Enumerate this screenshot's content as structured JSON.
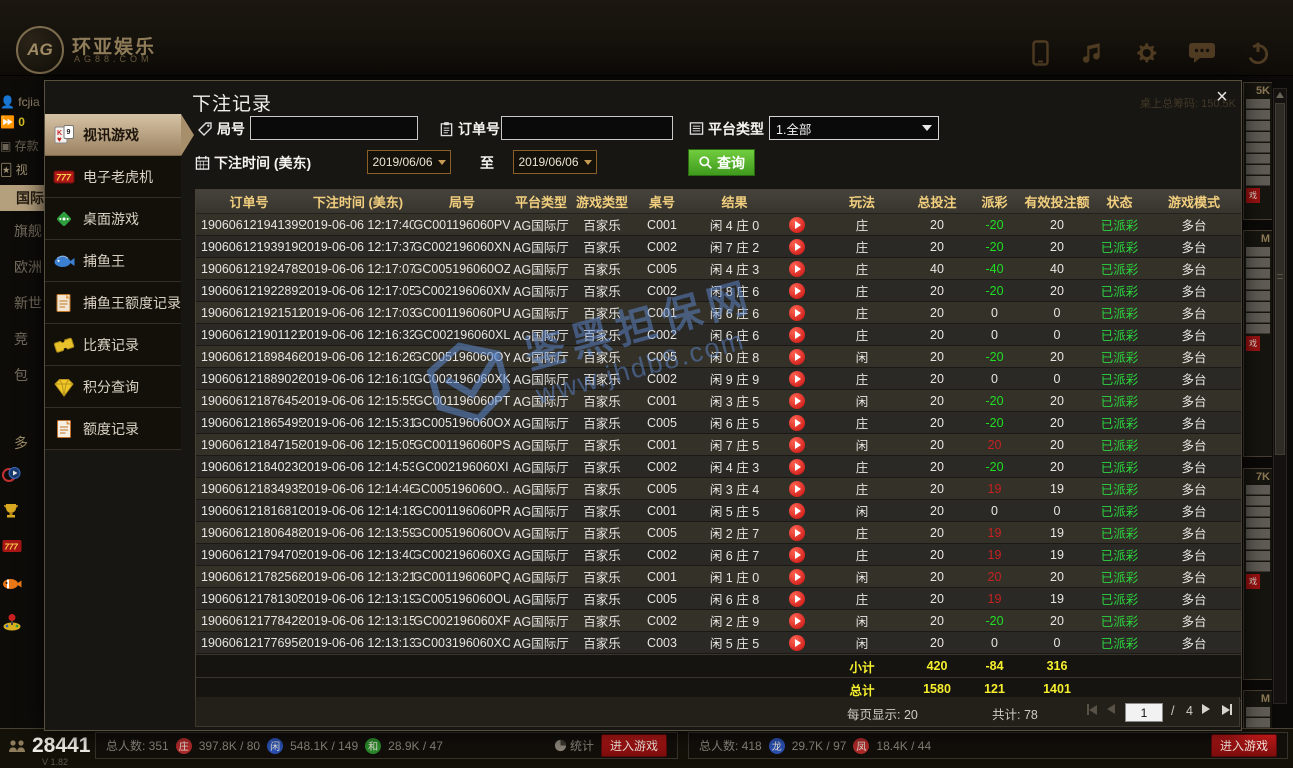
{
  "top_bar": {
    "logo_text": "AG",
    "brand_name": "环亚娱乐",
    "brand_domain": "AG88.COM",
    "icons": [
      "phone-icon",
      "music-icon",
      "settings-icon",
      "chat-icon",
      "power-icon"
    ]
  },
  "background": {
    "user": {
      "name": "fcjia",
      "balance": "0",
      "deposit_label": "存款",
      "video_label": "视"
    },
    "left_nav": [
      "国际",
      "旗舰",
      "欧洲",
      "新世",
      "竞",
      "包",
      "多"
    ],
    "left_nav_icons": [
      "live-icon",
      "trophy-icon",
      "slot-icon",
      "fish-icon",
      "arcade-icon"
    ],
    "header_bleed": "桌上总筹码: 150.5K",
    "right_cards": [
      "5K",
      "M",
      "7K",
      "M"
    ],
    "enter_fragment": "戏",
    "bottom_bar": {
      "online_count": "28441",
      "version": "V 1.82",
      "table1": {
        "total_label": "总人数: 351",
        "stats": [
          {
            "badge": "庄",
            "color": "#b02a2a",
            "value": "397.8K / 80"
          },
          {
            "badge": "闲",
            "color": "#2a50b0",
            "value": "548.1K / 149"
          },
          {
            "badge": "和",
            "color": "#2a8a2a",
            "value": "28.9K / 47"
          }
        ],
        "stat_button": "统计",
        "enter_button": "进入游戏"
      },
      "table2": {
        "total_label": "总人数: 418",
        "stats": [
          {
            "badge": "龙",
            "color": "#2a50b0",
            "value": "29.7K / 97"
          },
          {
            "badge": "凤",
            "color": "#b02a2a",
            "value": "18.4K / 44"
          }
        ],
        "enter_button": "进入游戏"
      }
    }
  },
  "dialog": {
    "title": "下注记录",
    "close_label": "×",
    "menu": [
      {
        "label": "视讯游戏",
        "icon": "cards-icon",
        "active": true
      },
      {
        "label": "电子老虎机",
        "icon": "slot-icon",
        "active": false
      },
      {
        "label": "桌面游戏",
        "icon": "dice-icon",
        "active": false
      },
      {
        "label": "捕鱼王",
        "icon": "fish-icon",
        "active": false
      },
      {
        "label": "捕鱼王额度记录",
        "icon": "fish-record-icon",
        "active": false
      },
      {
        "label": "比赛记录",
        "icon": "ticket-icon",
        "active": false
      },
      {
        "label": "积分查询",
        "icon": "points-icon",
        "active": false
      },
      {
        "label": "额度记录",
        "icon": "credit-record-icon",
        "active": false
      }
    ],
    "filters": {
      "round_label": "局号",
      "round_value": "",
      "order_label": "订单号",
      "order_value": "",
      "platform_label": "平台类型",
      "platform_value": "1.全部",
      "time_label": "下注时间 (美东)",
      "date_from": "2019/06/06",
      "to_label": "至",
      "date_to": "2019/06/06",
      "search_label": "查询"
    },
    "table": {
      "headers": [
        "订单号",
        "下注时间 (美东)",
        "局号",
        "平台类型",
        "游戏类型",
        "桌号",
        "结果",
        "",
        "玩法",
        "总投注",
        "派彩",
        "有效投注额",
        "状态",
        "游戏模式"
      ],
      "rows": [
        {
          "order_id": "190606121941399",
          "bet_time": "2019-06-06 12:17:40",
          "round_id": "GC001196060PV",
          "platform": "AG国际厅",
          "game_type": "百家乐",
          "table_no": "C001",
          "result": "闲 4 庄 0",
          "play": "庄",
          "bet": "20",
          "payout": "-20",
          "valid_bet": "20",
          "status": "已派彩",
          "mode": "多台"
        },
        {
          "order_id": "190606121939190",
          "bet_time": "2019-06-06 12:17:37",
          "round_id": "GC002196060XN",
          "platform": "AG国际厅",
          "game_type": "百家乐",
          "table_no": "C002",
          "result": "闲 7 庄 2",
          "play": "庄",
          "bet": "20",
          "payout": "-20",
          "valid_bet": "20",
          "status": "已派彩",
          "mode": "多台"
        },
        {
          "order_id": "190606121924789",
          "bet_time": "2019-06-06 12:17:07",
          "round_id": "GC005196060OZ",
          "platform": "AG国际厅",
          "game_type": "百家乐",
          "table_no": "C005",
          "result": "闲 4 庄 3",
          "play": "庄",
          "bet": "40",
          "payout": "-40",
          "valid_bet": "40",
          "status": "已派彩",
          "mode": "多台"
        },
        {
          "order_id": "190606121922892",
          "bet_time": "2019-06-06 12:17:05",
          "round_id": "GC002196060XM",
          "platform": "AG国际厅",
          "game_type": "百家乐",
          "table_no": "C002",
          "result": "闲 8 庄 6",
          "play": "庄",
          "bet": "20",
          "payout": "-20",
          "valid_bet": "20",
          "status": "已派彩",
          "mode": "多台"
        },
        {
          "order_id": "190606121921511",
          "bet_time": "2019-06-06 12:17:03",
          "round_id": "GC001196060PU",
          "platform": "AG国际厅",
          "game_type": "百家乐",
          "table_no": "C001",
          "result": "闲 6 庄 6",
          "play": "庄",
          "bet": "20",
          "payout": "0",
          "valid_bet": "0",
          "status": "已派彩",
          "mode": "多台"
        },
        {
          "order_id": "190606121901121",
          "bet_time": "2019-06-06 12:16:32",
          "round_id": "GC002196060XL",
          "platform": "AG国际厅",
          "game_type": "百家乐",
          "table_no": "C002",
          "result": "闲 6 庄 6",
          "play": "庄",
          "bet": "20",
          "payout": "0",
          "valid_bet": "0",
          "status": "已派彩",
          "mode": "多台"
        },
        {
          "order_id": "190606121898466",
          "bet_time": "2019-06-06 12:16:26",
          "round_id": "GC005196060OY",
          "platform": "AG国际厅",
          "game_type": "百家乐",
          "table_no": "C005",
          "result": "闲 0 庄 8",
          "play": "闲",
          "bet": "20",
          "payout": "-20",
          "valid_bet": "20",
          "status": "已派彩",
          "mode": "多台"
        },
        {
          "order_id": "190606121889026",
          "bet_time": "2019-06-06 12:16:10",
          "round_id": "GC002196060XK",
          "platform": "AG国际厅",
          "game_type": "百家乐",
          "table_no": "C002",
          "result": "闲 9 庄 9",
          "play": "庄",
          "bet": "20",
          "payout": "0",
          "valid_bet": "0",
          "status": "已派彩",
          "mode": "多台"
        },
        {
          "order_id": "190606121876454",
          "bet_time": "2019-06-06 12:15:55",
          "round_id": "GC001196060PT",
          "platform": "AG国际厅",
          "game_type": "百家乐",
          "table_no": "C001",
          "result": "闲 3 庄 5",
          "play": "闲",
          "bet": "20",
          "payout": "-20",
          "valid_bet": "20",
          "status": "已派彩",
          "mode": "多台"
        },
        {
          "order_id": "190606121865495",
          "bet_time": "2019-06-06 12:15:31",
          "round_id": "GC005196060OX",
          "platform": "AG国际厅",
          "game_type": "百家乐",
          "table_no": "C005",
          "result": "闲 6 庄 5",
          "play": "庄",
          "bet": "20",
          "payout": "-20",
          "valid_bet": "20",
          "status": "已派彩",
          "mode": "多台"
        },
        {
          "order_id": "190606121847158",
          "bet_time": "2019-06-06 12:15:05",
          "round_id": "GC001196060PS",
          "platform": "AG国际厅",
          "game_type": "百家乐",
          "table_no": "C001",
          "result": "闲 7 庄 5",
          "play": "闲",
          "bet": "20",
          "payout": "20",
          "valid_bet": "20",
          "status": "已派彩",
          "mode": "多台"
        },
        {
          "order_id": "190606121840230",
          "bet_time": "2019-06-06 12:14:53",
          "round_id": "GC002196060XI",
          "platform": "AG国际厅",
          "game_type": "百家乐",
          "table_no": "C002",
          "result": "闲 4 庄 3",
          "play": "庄",
          "bet": "20",
          "payout": "-20",
          "valid_bet": "20",
          "status": "已派彩",
          "mode": "多台"
        },
        {
          "order_id": "190606121834935",
          "bet_time": "2019-06-06 12:14:46",
          "round_id": "GC005196060O...",
          "platform": "AG国际厅",
          "game_type": "百家乐",
          "table_no": "C005",
          "result": "闲 3 庄 4",
          "play": "庄",
          "bet": "20",
          "payout": "19",
          "valid_bet": "19",
          "status": "已派彩",
          "mode": "多台"
        },
        {
          "order_id": "190606121816810",
          "bet_time": "2019-06-06 12:14:18",
          "round_id": "GC001196060PR",
          "platform": "AG国际厅",
          "game_type": "百家乐",
          "table_no": "C001",
          "result": "闲 5 庄 5",
          "play": "闲",
          "bet": "20",
          "payout": "0",
          "valid_bet": "0",
          "status": "已派彩",
          "mode": "多台"
        },
        {
          "order_id": "190606121806488",
          "bet_time": "2019-06-06 12:13:59",
          "round_id": "GC005196060OV",
          "platform": "AG国际厅",
          "game_type": "百家乐",
          "table_no": "C005",
          "result": "闲 2 庄 7",
          "play": "庄",
          "bet": "20",
          "payout": "19",
          "valid_bet": "19",
          "status": "已派彩",
          "mode": "多台"
        },
        {
          "order_id": "190606121794705",
          "bet_time": "2019-06-06 12:13:40",
          "round_id": "GC002196060XG",
          "platform": "AG国际厅",
          "game_type": "百家乐",
          "table_no": "C002",
          "result": "闲 6 庄 7",
          "play": "庄",
          "bet": "20",
          "payout": "19",
          "valid_bet": "19",
          "status": "已派彩",
          "mode": "多台"
        },
        {
          "order_id": "190606121782568",
          "bet_time": "2019-06-06 12:13:21",
          "round_id": "GC001196060PQ",
          "platform": "AG国际厅",
          "game_type": "百家乐",
          "table_no": "C001",
          "result": "闲 1 庄 0",
          "play": "闲",
          "bet": "20",
          "payout": "20",
          "valid_bet": "20",
          "status": "已派彩",
          "mode": "多台"
        },
        {
          "order_id": "190606121781305",
          "bet_time": "2019-06-06 12:13:19",
          "round_id": "GC005196060OU",
          "platform": "AG国际厅",
          "game_type": "百家乐",
          "table_no": "C005",
          "result": "闲 6 庄 8",
          "play": "庄",
          "bet": "20",
          "payout": "19",
          "valid_bet": "19",
          "status": "已派彩",
          "mode": "多台"
        },
        {
          "order_id": "190606121778428",
          "bet_time": "2019-06-06 12:13:15",
          "round_id": "GC002196060XF",
          "platform": "AG国际厅",
          "game_type": "百家乐",
          "table_no": "C002",
          "result": "闲 2 庄 9",
          "play": "闲",
          "bet": "20",
          "payout": "-20",
          "valid_bet": "20",
          "status": "已派彩",
          "mode": "多台"
        },
        {
          "order_id": "190606121776956",
          "bet_time": "2019-06-06 12:13:13",
          "round_id": "GC003196060XO",
          "platform": "AG国际厅",
          "game_type": "百家乐",
          "table_no": "C003",
          "result": "闲 5 庄 5",
          "play": "闲",
          "bet": "20",
          "payout": "0",
          "valid_bet": "0",
          "status": "已派彩",
          "mode": "多台"
        }
      ],
      "summary": [
        {
          "label": "小计",
          "bet": "420",
          "payout": "-84",
          "valid_bet": "316"
        },
        {
          "label": "总计",
          "bet": "1580",
          "payout": "121",
          "valid_bet": "1401"
        }
      ]
    },
    "pagination": {
      "per_page": "每页显示: 20",
      "total": "共计: 78",
      "page": "1",
      "page_sep": "/",
      "page_count": "4"
    }
  },
  "watermark": {
    "line1": "鉴黑担保网",
    "line2": "www.jhdb8.com"
  },
  "colors": {
    "accent_tan": "#c5ad8a",
    "header_gold": "#f2cf7e",
    "payout_negative": "#1ee021",
    "payout_positive": "#c62222",
    "status_green": "#2bd53e",
    "summary_yellow": "#f5ef2e",
    "search_green": "#4aa626",
    "enter_red": "#a01212",
    "watermark_blue": "#5e8ad2"
  }
}
